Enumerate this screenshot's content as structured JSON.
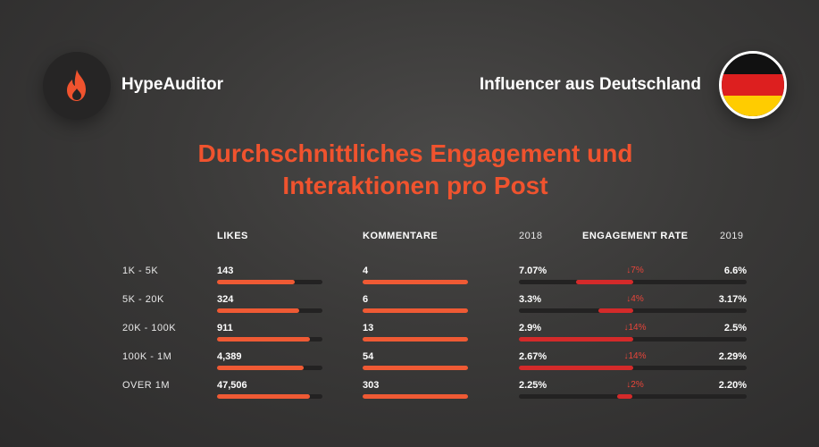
{
  "brand": {
    "name": "HypeAuditor",
    "logo_icon": "flame-icon",
    "accent": "#f0532e"
  },
  "country": {
    "label": "Influencer aus Deutschland",
    "flag_icon": "germany-flag-icon",
    "flag_colors": [
      "#111111",
      "#dd1f1f",
      "#ffcc00"
    ]
  },
  "headline": {
    "line1": "Durchschnittliches Engagement und",
    "line2": "Interaktionen pro Post"
  },
  "table": {
    "headers": {
      "likes": "LIKES",
      "comments": "KOMMENTARE",
      "year_2018": "2018",
      "engagement_rate": "ENGAGEMENT RATE",
      "year_2019": "2019"
    },
    "rows": [
      {
        "label": "1K - 5K",
        "likes": "143",
        "likes_level": 0.74,
        "comments": "4",
        "comments_level": 1.0,
        "er_2018": "7.07%",
        "er_change": "↓7%",
        "er_2019": "6.6%",
        "er_change_from": 0.25,
        "er_change_to": 0.5
      },
      {
        "label": "5K - 20K",
        "likes": "324",
        "likes_level": 0.78,
        "comments": "6",
        "comments_level": 1.0,
        "er_2018": "3.3%",
        "er_change": "↓4%",
        "er_2019": "3.17%",
        "er_change_from": 0.35,
        "er_change_to": 0.5
      },
      {
        "label": "20K - 100K",
        "likes": "911",
        "likes_level": 0.88,
        "comments": "13",
        "comments_level": 1.0,
        "er_2018": "2.9%",
        "er_change": "↓14%",
        "er_2019": "2.5%",
        "er_change_from": 0.0,
        "er_change_to": 0.5
      },
      {
        "label": "100K - 1M",
        "likes": "4,389",
        "likes_level": 0.82,
        "comments": "54",
        "comments_level": 1.0,
        "er_2018": "2.67%",
        "er_change": "↓14%",
        "er_2019": "2.29%",
        "er_change_from": 0.0,
        "er_change_to": 0.5
      },
      {
        "label": "OVER 1M",
        "likes": "47,506",
        "likes_level": 0.88,
        "comments": "303",
        "comments_level": 1.0,
        "er_2018": "2.25%",
        "er_change": "↓2%",
        "er_2019": "2.20%",
        "er_change_from": 0.43,
        "er_change_to": 0.5
      }
    ]
  }
}
